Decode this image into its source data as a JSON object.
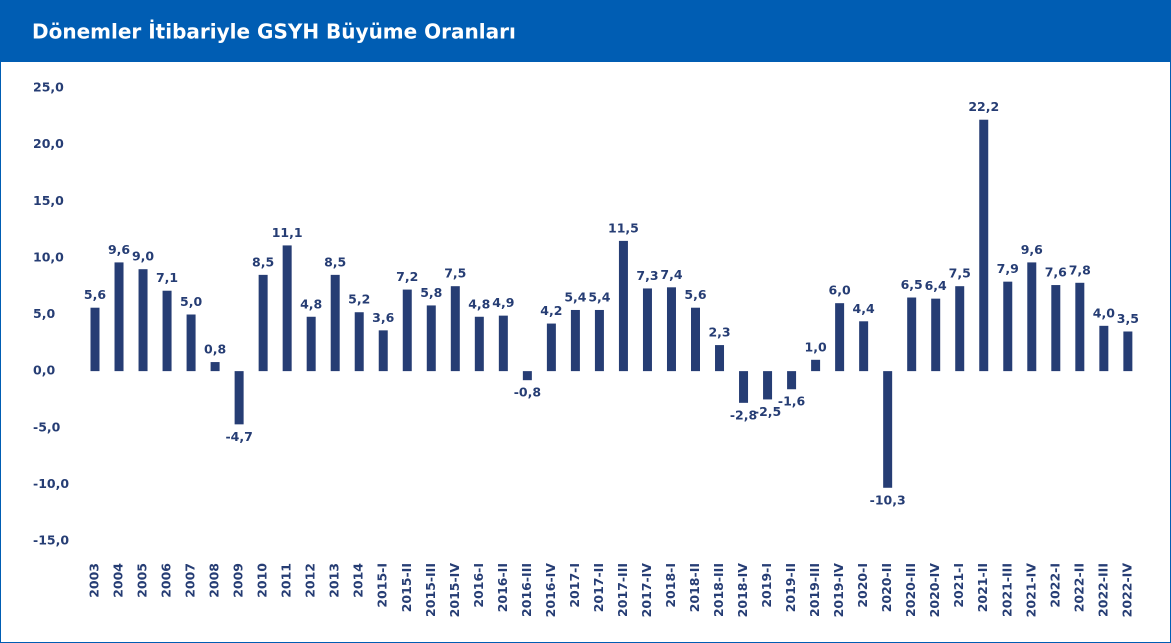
{
  "chart_data": {
    "type": "bar",
    "title": "Dönemler İtibariyle GSYH Büyüme Oranları",
    "categories": [
      "2003",
      "2004",
      "2005",
      "2006",
      "2007",
      "2008",
      "2009",
      "2010",
      "2011",
      "2012",
      "2013",
      "2014",
      "2015-I",
      "2015-II",
      "2015-III",
      "2015-IV",
      "2016-I",
      "2016-II",
      "2016-III",
      "2016-IV",
      "2017-I",
      "2017-II",
      "2017-III",
      "2017-IV",
      "2018-I",
      "2018-II",
      "2018-III",
      "2018-IV",
      "2019-I",
      "2019-II",
      "2019-III",
      "2019-IV",
      "2020-I",
      "2020-II",
      "2020-III",
      "2020-IV",
      "2021-I",
      "2021-II",
      "2021-III",
      "2021-IV",
      "2022-I",
      "2022-II",
      "2022-III",
      "2022-IV"
    ],
    "values": [
      5.6,
      9.6,
      9.0,
      7.1,
      5.0,
      0.8,
      -4.7,
      8.5,
      11.1,
      4.8,
      8.5,
      5.2,
      3.6,
      7.2,
      5.8,
      7.5,
      4.8,
      4.9,
      -0.8,
      4.2,
      5.4,
      5.4,
      11.5,
      7.3,
      7.4,
      5.6,
      2.3,
      -2.8,
      -2.5,
      -1.6,
      1.0,
      6.0,
      4.4,
      -10.3,
      6.5,
      6.4,
      7.5,
      22.2,
      7.9,
      9.6,
      7.6,
      7.8,
      4.0,
      3.5
    ],
    "value_labels": [
      "5,6",
      "9,6",
      "9,0",
      "7,1",
      "5,0",
      "0,8",
      "-4,7",
      "8,5",
      "11,1",
      "4,8",
      "8,5",
      "5,2",
      "3,6",
      "7,2",
      "5,8",
      "7,5",
      "4,8",
      "4,9",
      "-0,8",
      "4,2",
      "5,4",
      "5,4",
      "11,5",
      "7,3",
      "7,4",
      "5,6",
      "2,3",
      "-2,8",
      "-2,5",
      "-1,6",
      "1,0",
      "6,0",
      "4,4",
      "-10,3",
      "6,5",
      "6,4",
      "7,5",
      "22,2",
      "7,9",
      "9,6",
      "7,6",
      "7,8",
      "4,0",
      "3,5"
    ],
    "color": "#263d74",
    "ylim": [
      -15,
      25
    ],
    "yticks": [
      {
        "value": -15,
        "label": "-15,0"
      },
      {
        "value": -10,
        "label": "-10,0"
      },
      {
        "value": -5,
        "label": "-5,0"
      },
      {
        "value": 0,
        "label": "0,0"
      },
      {
        "value": 5,
        "label": "5,0"
      },
      {
        "value": 10,
        "label": "10,0"
      },
      {
        "value": 15,
        "label": "15,0"
      },
      {
        "value": 20,
        "label": "20,0"
      },
      {
        "value": 25,
        "label": "25,0"
      }
    ],
    "grid": false
  }
}
